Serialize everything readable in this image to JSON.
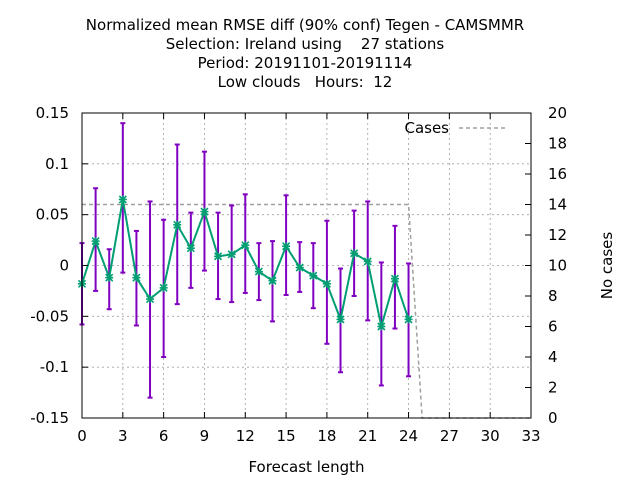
{
  "chart_data": {
    "type": "line",
    "title_lines": [
      "Normalized mean RMSE diff (90% conf) Tegen - CAMSMMR",
      "Selection: Ireland using    27 stations",
      "Period: 20191101-20191114",
      "Low clouds   Hours:  12"
    ],
    "xlabel": "Forecast length",
    "ylabel": "",
    "y2label": "No cases",
    "xlim": [
      0,
      33
    ],
    "ylim": [
      -0.15,
      0.15
    ],
    "y2lim": [
      0,
      20
    ],
    "xticks": [
      0,
      3,
      6,
      9,
      12,
      15,
      18,
      21,
      24,
      27,
      30,
      33
    ],
    "yticks": [
      -0.15,
      -0.1,
      -0.05,
      0,
      0.05,
      0.1,
      0.15
    ],
    "ytick_labels": [
      "-0.15",
      "-0.1",
      "-0.05",
      "0",
      "0.05",
      "0.1",
      "0.15"
    ],
    "y2ticks": [
      0,
      2,
      4,
      6,
      8,
      10,
      12,
      14,
      16,
      18,
      20
    ],
    "grid": true,
    "legend_position": "top-right",
    "series": [
      {
        "name": "",
        "color": "#009e73",
        "x": [
          0,
          1,
          2,
          3,
          4,
          5,
          6,
          7,
          8,
          9,
          10,
          11,
          12,
          13,
          14,
          15,
          16,
          17,
          18,
          19,
          20,
          21,
          22,
          23,
          24
        ],
        "values": [
          -0.018,
          0.024,
          -0.012,
          0.065,
          -0.012,
          -0.033,
          -0.022,
          0.04,
          0.017,
          0.053,
          0.009,
          0.011,
          0.02,
          -0.006,
          -0.015,
          0.019,
          -0.002,
          -0.01,
          -0.018,
          -0.053,
          0.012,
          0.004,
          -0.06,
          -0.013,
          -0.053
        ],
        "err_low": [
          -0.058,
          -0.025,
          -0.043,
          -0.007,
          -0.059,
          -0.13,
          -0.09,
          -0.038,
          -0.022,
          -0.005,
          -0.033,
          -0.036,
          -0.027,
          -0.034,
          -0.055,
          -0.029,
          -0.026,
          -0.042,
          -0.077,
          -0.105,
          -0.03,
          -0.054,
          -0.118,
          -0.062,
          -0.109
        ],
        "err_high": [
          0.022,
          0.076,
          0.016,
          0.14,
          0.034,
          0.063,
          0.045,
          0.119,
          0.052,
          0.112,
          0.052,
          0.059,
          0.07,
          0.022,
          0.024,
          0.069,
          0.023,
          0.022,
          0.044,
          -0.003,
          0.054,
          0.063,
          0.003,
          0.039,
          0.002
        ],
        "errorbar_color": "#8000c0"
      },
      {
        "name": "Cases",
        "axis": "y2",
        "color": "#a0a0a0",
        "x": [
          0,
          24,
          25,
          33
        ],
        "values": [
          14,
          14,
          0,
          0
        ]
      }
    ]
  }
}
